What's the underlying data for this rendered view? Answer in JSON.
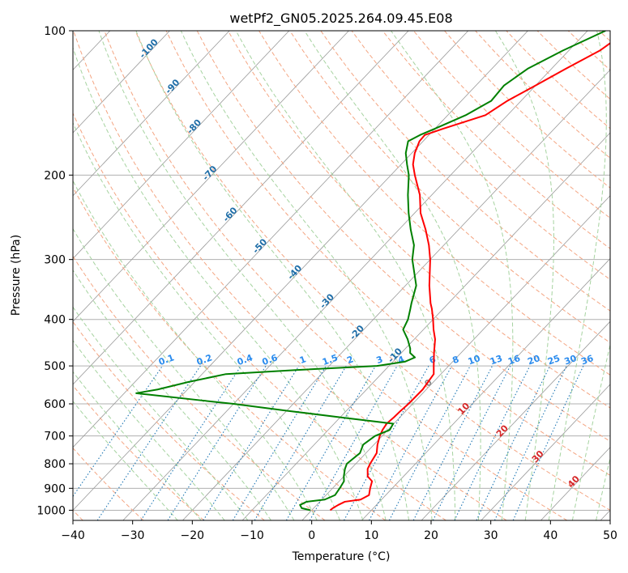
{
  "chart_data": {
    "type": "line",
    "title": "wetPf2_GN05.2025.264.09.45.E08",
    "xlabel": "Temperature (°C)",
    "ylabel": "Pressure (hPa)",
    "xlim": [
      -40,
      50
    ],
    "ylim": [
      1050,
      100
    ],
    "y_scale": "log",
    "grid": true,
    "x_ticks": [
      "−40",
      "−30",
      "−20",
      "−10",
      "0",
      "10",
      "20",
      "30",
      "40",
      "50"
    ],
    "y_ticks": [
      "100",
      "200",
      "300",
      "400",
      "500",
      "600",
      "700",
      "800",
      "900",
      "1000"
    ],
    "colors": {
      "temperature": "#ff0000",
      "dewpoint": "#008000",
      "dry_adiabat": "#f4a582",
      "moist_adiabat": "#a6d3a0",
      "mixing_ratio": "#1f77b4",
      "isotherm": "#999999",
      "dry_label": "#1f6ea8",
      "mixing_label": "#2b8cee",
      "moist_label": "#d62728"
    },
    "series": [
      {
        "key": "temperature",
        "pressure": [
          1000,
          990,
          975,
          960,
          950,
          930,
          900,
          870,
          850,
          820,
          800,
          760,
          730,
          700,
          680,
          660,
          640,
          620,
          600,
          560,
          520,
          500,
          470,
          440,
          420,
          400,
          380,
          370,
          340,
          300,
          280,
          260,
          240,
          220,
          200,
          190,
          180,
          170,
          165,
          160,
          150,
          140,
          130,
          120,
          110,
          100
        ],
        "temperature": [
          3.1,
          3.2,
          3.6,
          4.2,
          6.5,
          7.2,
          6.3,
          5.5,
          4.0,
          2.8,
          2.4,
          1.8,
          0.6,
          -0.4,
          -0.9,
          -1.2,
          -1.0,
          -0.9,
          -0.7,
          -0.6,
          -1.2,
          -2.5,
          -4.5,
          -6.5,
          -8.3,
          -10.0,
          -11.9,
          -13.0,
          -16.0,
          -20.0,
          -22.5,
          -25.5,
          -29.0,
          -32.0,
          -36.0,
          -38.0,
          -39.5,
          -40.6,
          -40.7,
          -38.6,
          -33.7,
          -32.3,
          -30.0,
          -27.6,
          -24.8,
          -23.3
        ]
      },
      {
        "key": "dewpoint",
        "pressure": [
          1000,
          990,
          975,
          960,
          950,
          930,
          900,
          870,
          850,
          820,
          800,
          760,
          730,
          700,
          680,
          660,
          640,
          620,
          600,
          590,
          580,
          570,
          560,
          540,
          520,
          510,
          500,
          490,
          480,
          470,
          460,
          440,
          420,
          400,
          380,
          370,
          340,
          300,
          280,
          260,
          240,
          220,
          200,
          190,
          180,
          170,
          165,
          160,
          150,
          140,
          130,
          120,
          110,
          100
        ],
        "dewpoint": [
          -0.2,
          -2.0,
          -2.8,
          -2.2,
          0.5,
          1.5,
          1.2,
          0.8,
          0.0,
          -1.0,
          -1.5,
          -1.0,
          -1.8,
          -1.2,
          0.3,
          -0.1,
          -10.0,
          -20.0,
          -30.0,
          -36.0,
          -42.0,
          -48.0,
          -45.0,
          -41.0,
          -36.0,
          -25.0,
          -12.0,
          -8.0,
          -7.0,
          -8.5,
          -9.2,
          -11.1,
          -13.4,
          -14.2,
          -15.5,
          -16.2,
          -18.2,
          -23.0,
          -25.0,
          -28.0,
          -31.0,
          -34.0,
          -37.0,
          -39.0,
          -41.0,
          -42.5,
          -41.5,
          -40.0,
          -37.0,
          -35.0,
          -35.3,
          -34.0,
          -31.0,
          -27.0
        ]
      }
    ],
    "label_values": {
      "dry_adiabats": [
        "-100",
        "-90",
        "-80",
        "-70",
        "-60",
        "-50",
        "-40",
        "-30",
        "-20",
        "-10",
        "0",
        "10",
        "20",
        "30",
        "40"
      ],
      "mixing_ratios": [
        "0.1",
        "0.2",
        "0.4",
        "0.6",
        "1",
        "1.5",
        "2",
        "3",
        "4",
        "6",
        "8",
        "10",
        "13",
        "16",
        "20",
        "25",
        "30",
        "36"
      ]
    }
  }
}
